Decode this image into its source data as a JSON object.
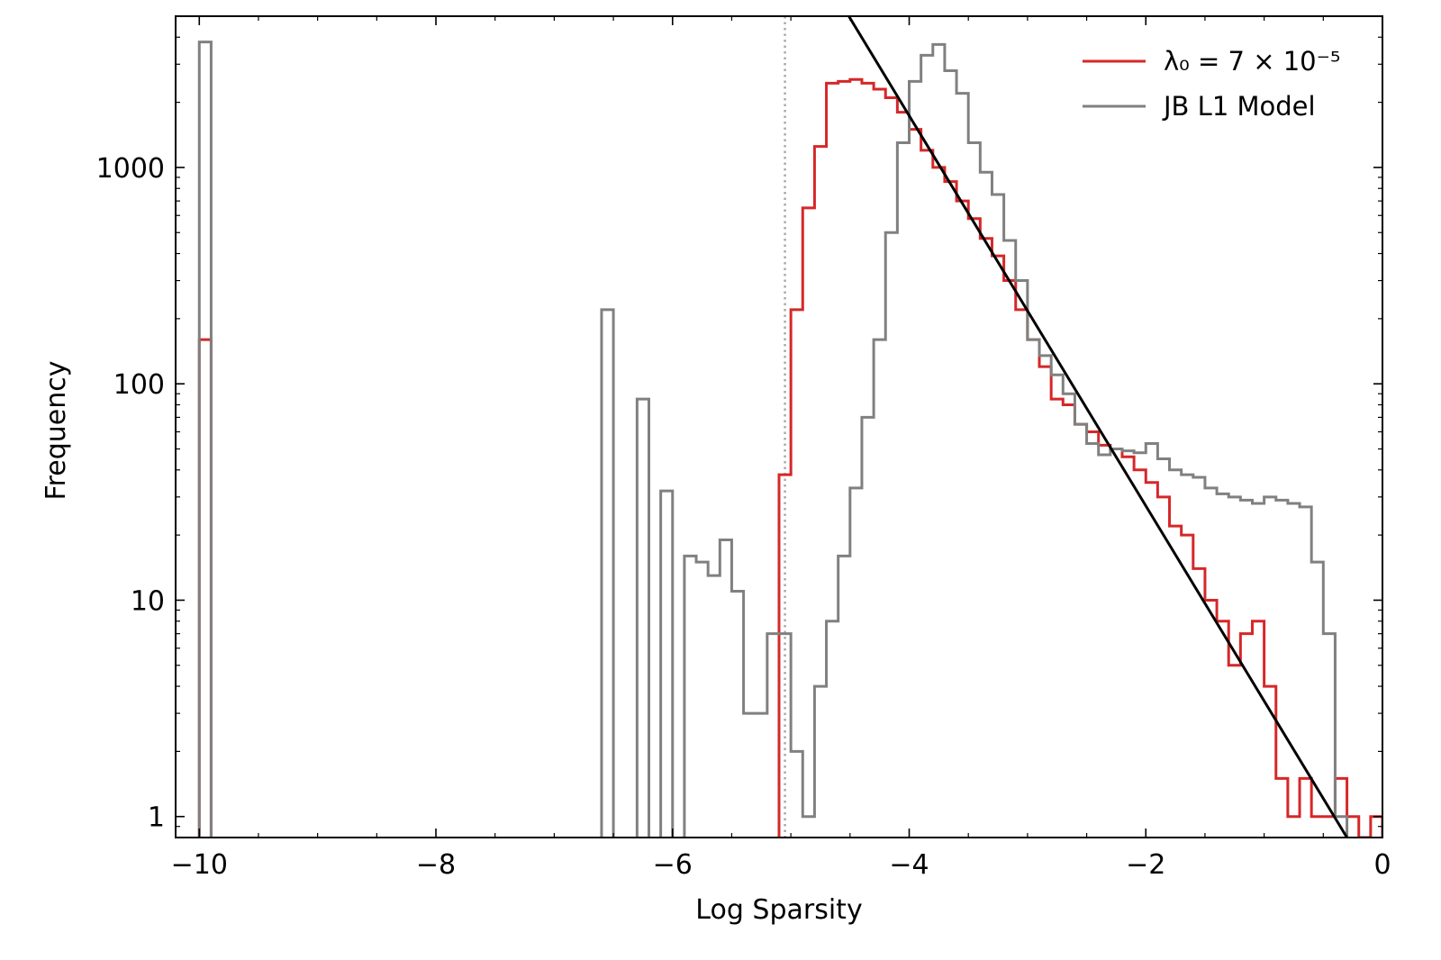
{
  "chart_data": {
    "type": "histogram",
    "xlabel": "Log Sparsity",
    "ylabel": "Frequency",
    "xlim": [
      -10.2,
      0
    ],
    "ylim": [
      0.8,
      5000
    ],
    "yscale": "log",
    "x_ticks": [
      -10,
      -8,
      -6,
      -4,
      -2,
      0
    ],
    "x_tick_labels": [
      "−10",
      "−8",
      "−6",
      "−4",
      "−2",
      "0"
    ],
    "y_ticks": [
      1,
      10,
      100,
      1000
    ],
    "y_tick_labels": [
      "1",
      "10",
      "100",
      "1000"
    ],
    "bin_width": 0.1,
    "legend": {
      "position": "top-right"
    },
    "vline": {
      "x": -5.05,
      "style": "dotted",
      "color": "#aaaaaa"
    },
    "fit_line": {
      "x": [
        -4.51,
        -0.3
      ],
      "y": [
        5000,
        0.8
      ],
      "color": "#000000"
    },
    "series": [
      {
        "name": "λ₀ = 7 × 10⁻⁵",
        "color": "#d62728",
        "bins": [
          [
            -10.0,
            160
          ],
          [
            -5.1,
            38
          ],
          [
            -5.0,
            220
          ],
          [
            -4.9,
            650
          ],
          [
            -4.8,
            1250
          ],
          [
            -4.7,
            2450
          ],
          [
            -4.6,
            2500
          ],
          [
            -4.5,
            2550
          ],
          [
            -4.4,
            2450
          ],
          [
            -4.3,
            2300
          ],
          [
            -4.2,
            2100
          ],
          [
            -4.1,
            1800
          ],
          [
            -4.0,
            1500
          ],
          [
            -3.9,
            1200
          ],
          [
            -3.8,
            1000
          ],
          [
            -3.7,
            860
          ],
          [
            -3.6,
            700
          ],
          [
            -3.5,
            580
          ],
          [
            -3.4,
            470
          ],
          [
            -3.3,
            390
          ],
          [
            -3.2,
            300
          ],
          [
            -3.1,
            220
          ],
          [
            -3.0,
            160
          ],
          [
            -2.9,
            120
          ],
          [
            -2.8,
            85
          ],
          [
            -2.7,
            80
          ],
          [
            -2.6,
            65
          ],
          [
            -2.5,
            60
          ],
          [
            -2.4,
            52
          ],
          [
            -2.3,
            50
          ],
          [
            -2.2,
            46
          ],
          [
            -2.1,
            40
          ],
          [
            -2.0,
            35
          ],
          [
            -1.9,
            30
          ],
          [
            -1.8,
            22
          ],
          [
            -1.7,
            20
          ],
          [
            -1.6,
            14
          ],
          [
            -1.5,
            10
          ],
          [
            -1.4,
            8
          ],
          [
            -1.3,
            5
          ],
          [
            -1.2,
            7
          ],
          [
            -1.1,
            8
          ],
          [
            -1.0,
            4
          ],
          [
            -0.9,
            1.5
          ],
          [
            -0.8,
            1
          ],
          [
            -0.7,
            1.5
          ],
          [
            -0.6,
            1
          ],
          [
            -0.5,
            1
          ],
          [
            -0.4,
            1.5
          ],
          [
            -0.3,
            1
          ],
          [
            -0.2,
            0.8
          ],
          [
            -0.1,
            1
          ]
        ]
      },
      {
        "name": "JB L1 Model",
        "color": "#808080",
        "bins": [
          [
            -10.0,
            3800
          ],
          [
            -6.6,
            220
          ],
          [
            -6.3,
            85
          ],
          [
            -6.1,
            32
          ],
          [
            -5.9,
            16
          ],
          [
            -5.8,
            15
          ],
          [
            -5.7,
            13
          ],
          [
            -5.6,
            19
          ],
          [
            -5.5,
            11
          ],
          [
            -5.4,
            3
          ],
          [
            -5.3,
            3
          ],
          [
            -5.2,
            7
          ],
          [
            -5.1,
            7
          ],
          [
            -5.0,
            2
          ],
          [
            -4.9,
            1
          ],
          [
            -4.8,
            4
          ],
          [
            -4.7,
            8
          ],
          [
            -4.6,
            16
          ],
          [
            -4.5,
            33
          ],
          [
            -4.4,
            70
          ],
          [
            -4.3,
            160
          ],
          [
            -4.2,
            500
          ],
          [
            -4.1,
            1300
          ],
          [
            -4.0,
            2500
          ],
          [
            -3.9,
            3300
          ],
          [
            -3.8,
            3700
          ],
          [
            -3.7,
            2800
          ],
          [
            -3.6,
            2200
          ],
          [
            -3.5,
            1300
          ],
          [
            -3.4,
            950
          ],
          [
            -3.3,
            750
          ],
          [
            -3.2,
            460
          ],
          [
            -3.1,
            300
          ],
          [
            -3.0,
            160
          ],
          [
            -2.9,
            135
          ],
          [
            -2.8,
            110
          ],
          [
            -2.7,
            90
          ],
          [
            -2.6,
            65
          ],
          [
            -2.5,
            53
          ],
          [
            -2.4,
            47
          ],
          [
            -2.3,
            50
          ],
          [
            -2.2,
            49
          ],
          [
            -2.1,
            48
          ],
          [
            -2.0,
            53
          ],
          [
            -1.9,
            45
          ],
          [
            -1.8,
            40
          ],
          [
            -1.7,
            38
          ],
          [
            -1.6,
            37
          ],
          [
            -1.5,
            33
          ],
          [
            -1.4,
            31
          ],
          [
            -1.3,
            30
          ],
          [
            -1.2,
            29
          ],
          [
            -1.1,
            28
          ],
          [
            -1.0,
            30
          ],
          [
            -0.9,
            29
          ],
          [
            -0.8,
            28
          ],
          [
            -0.7,
            27
          ],
          [
            -0.6,
            15
          ],
          [
            -0.5,
            7
          ],
          [
            -0.4,
            1
          ]
        ]
      }
    ]
  }
}
